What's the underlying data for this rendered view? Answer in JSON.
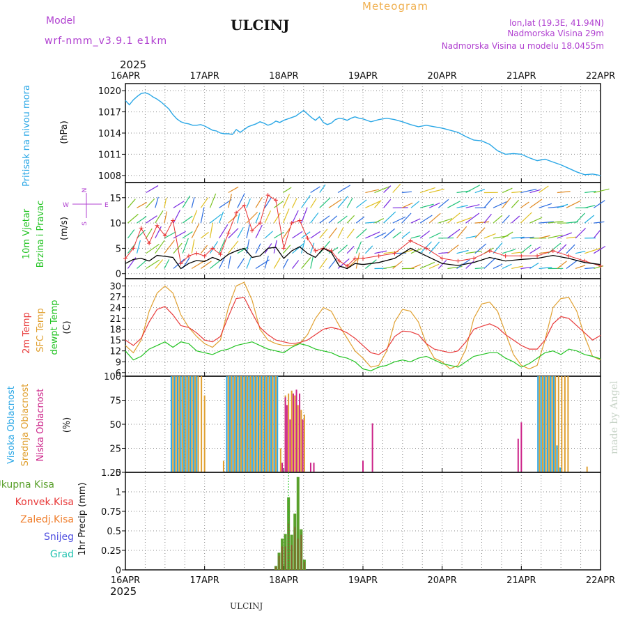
{
  "header": {
    "model_label": "Model",
    "model_name": "wrf-nmm_v3.9.1  e1km",
    "station": "ULCINJ",
    "meteogram": "Meteogram",
    "lonlat": "lon,lat (19.3E, 41.94N)",
    "elev": "Nadmorska Visina 29m",
    "elev_model": "Nadmorska Visina u modelu 18.0455m",
    "footer_station": "ULCINJ",
    "credit": "made by Angel"
  },
  "x_axis": {
    "year": "2025",
    "ticks": [
      "16APR",
      "17APR",
      "18APR",
      "19APR",
      "20APR",
      "21APR",
      "22APR"
    ]
  },
  "colors": {
    "pressure": "#2aa7e6",
    "wind_speed": "#000000",
    "gust": "#e83030",
    "temp2m": "#e83a3a",
    "sfc_temp": "#e0a030",
    "dewpt": "#22c322",
    "cloud_high": "#2aa7e6",
    "cloud_mid": "#e0a030",
    "cloud_low": "#cc2288",
    "precip_total": "#5aa02c",
    "precip_conv": "#b03030",
    "header_purple": "#b040d0",
    "header_orange": "#f0b050"
  },
  "chart_data": [
    {
      "type": "line",
      "name": "pressure",
      "ylabel_main": "Pritisak na nivou mora",
      "ylabel_unit": "(hPa)",
      "ylim": [
        1007,
        1021
      ],
      "yticks": [
        1008,
        1011,
        1014,
        1017,
        1020
      ],
      "x_days": [
        0,
        0.05,
        0.1,
        0.15,
        0.2,
        0.25,
        0.3,
        0.35,
        0.4,
        0.45,
        0.5,
        0.55,
        0.6,
        0.65,
        0.7,
        0.75,
        0.8,
        0.85,
        0.9,
        0.95,
        1.0,
        1.05,
        1.1,
        1.15,
        1.2,
        1.25,
        1.3,
        1.35,
        1.4,
        1.45,
        1.5,
        1.55,
        1.6,
        1.65,
        1.7,
        1.75,
        1.8,
        1.85,
        1.9,
        1.95,
        2.0,
        2.05,
        2.1,
        2.15,
        2.2,
        2.25,
        2.3,
        2.35,
        2.4,
        2.45,
        2.5,
        2.55,
        2.6,
        2.65,
        2.7,
        2.75,
        2.8,
        2.85,
        2.9,
        2.95,
        3.0,
        3.1,
        3.2,
        3.3,
        3.4,
        3.5,
        3.6,
        3.7,
        3.8,
        3.9,
        4.0,
        4.1,
        4.2,
        4.3,
        4.4,
        4.5,
        4.6,
        4.7,
        4.8,
        4.9,
        5.0,
        5.1,
        5.2,
        5.3,
        5.4,
        5.5,
        5.6,
        5.7,
        5.8,
        5.9,
        6.0
      ],
      "values": [
        1018.6,
        1018.0,
        1018.7,
        1019.2,
        1019.6,
        1019.7,
        1019.5,
        1019.1,
        1018.8,
        1018.4,
        1017.9,
        1017.4,
        1016.6,
        1016.0,
        1015.6,
        1015.4,
        1015.3,
        1015.1,
        1015.1,
        1015.2,
        1015.0,
        1014.7,
        1014.4,
        1014.3,
        1014.0,
        1013.9,
        1013.9,
        1013.8,
        1014.5,
        1014.1,
        1014.5,
        1014.9,
        1015.1,
        1015.3,
        1015.6,
        1015.4,
        1015.1,
        1015.3,
        1015.7,
        1015.5,
        1015.8,
        1016.0,
        1016.2,
        1016.4,
        1016.8,
        1017.2,
        1016.7,
        1016.2,
        1015.8,
        1016.3,
        1015.5,
        1015.2,
        1015.4,
        1015.9,
        1016.1,
        1016.0,
        1015.8,
        1016.1,
        1016.3,
        1016.1,
        1016.0,
        1015.6,
        1015.9,
        1016.1,
        1015.9,
        1015.6,
        1015.2,
        1014.9,
        1015.1,
        1014.9,
        1014.7,
        1014.4,
        1014.1,
        1013.5,
        1013.0,
        1012.9,
        1012.4,
        1011.5,
        1011.0,
        1011.1,
        1011.0,
        1010.5,
        1010.1,
        1010.3,
        1009.9,
        1009.5,
        1009.0,
        1008.5,
        1008.1,
        1008.2,
        1008.0
      ]
    },
    {
      "type": "line",
      "name": "wind",
      "ylabel_main": "10m Vjetar",
      "ylabel_sub": "Brzina i Pravac",
      "ylabel_unit": "(m/s)",
      "compass": [
        "N",
        "W",
        "E",
        "S"
      ],
      "ylim": [
        -1,
        18
      ],
      "yticks": [
        0,
        5,
        10,
        15
      ],
      "x_days": [
        0,
        0.1,
        0.2,
        0.3,
        0.4,
        0.5,
        0.6,
        0.7,
        0.8,
        0.9,
        1.0,
        1.1,
        1.2,
        1.3,
        1.4,
        1.5,
        1.6,
        1.7,
        1.8,
        1.9,
        2.0,
        2.1,
        2.2,
        2.3,
        2.4,
        2.5,
        2.6,
        2.7,
        2.8,
        2.9,
        3.0,
        3.2,
        3.4,
        3.6,
        3.8,
        4.0,
        4.2,
        4.4,
        4.6,
        4.8,
        5.0,
        5.2,
        5.4,
        5.6,
        5.8,
        6.0
      ],
      "speed": [
        2.0,
        2.8,
        3.0,
        2.5,
        3.6,
        3.4,
        3.2,
        1.0,
        2.0,
        2.6,
        2.4,
        3.2,
        2.6,
        3.8,
        4.5,
        5.0,
        3.2,
        3.5,
        5.0,
        5.2,
        3.0,
        4.5,
        5.3,
        4.0,
        3.2,
        5.0,
        4.2,
        1.5,
        1.0,
        2.0,
        1.8,
        2.2,
        3.0,
        5.0,
        3.5,
        2.0,
        1.6,
        2.2,
        3.2,
        2.5,
        2.8,
        3.0,
        3.6,
        3.0,
        2.2,
        1.8
      ],
      "gust": [
        3.0,
        5.0,
        9.0,
        6.0,
        9.5,
        7.5,
        10.5,
        2.0,
        3.5,
        4.0,
        3.5,
        5.0,
        3.8,
        8.0,
        12.0,
        13.5,
        8.5,
        10.0,
        15.5,
        14.5,
        5.0,
        10.0,
        10.5,
        7.0,
        4.5,
        5.0,
        4.5,
        2.5,
        1.5,
        3.0,
        3.0,
        3.5,
        4.0,
        6.5,
        5.0,
        3.0,
        2.5,
        3.0,
        4.5,
        3.5,
        3.5,
        3.5,
        4.5,
        3.5,
        2.5,
        1.5
      ]
    },
    {
      "type": "line",
      "name": "temperature",
      "series_labels": [
        "2m Temp",
        "SFC Temp",
        "dewpt Temp"
      ],
      "ylabel_unit": "(C)",
      "ylim": [
        5,
        32
      ],
      "yticks": [
        6,
        9,
        12,
        15,
        18,
        21,
        24,
        27,
        30
      ],
      "x_days": [
        0,
        0.1,
        0.2,
        0.3,
        0.4,
        0.5,
        0.6,
        0.7,
        0.8,
        0.9,
        1.0,
        1.1,
        1.2,
        1.3,
        1.4,
        1.5,
        1.6,
        1.7,
        1.8,
        1.9,
        2.0,
        2.1,
        2.2,
        2.3,
        2.4,
        2.5,
        2.6,
        2.7,
        2.8,
        2.9,
        3.0,
        3.1,
        3.2,
        3.3,
        3.4,
        3.5,
        3.6,
        3.7,
        3.8,
        3.9,
        4.0,
        4.1,
        4.2,
        4.3,
        4.4,
        4.5,
        4.6,
        4.7,
        4.8,
        4.9,
        5.0,
        5.1,
        5.2,
        5.3,
        5.4,
        5.5,
        5.6,
        5.7,
        5.8,
        5.9,
        6.0
      ],
      "temp2m": [
        15.0,
        13.5,
        15.5,
        20.0,
        23.5,
        24.3,
        22.0,
        19.0,
        18.5,
        17.0,
        15.0,
        14.5,
        16.0,
        21.5,
        26.5,
        26.8,
        22.5,
        18.5,
        16.5,
        15.0,
        14.5,
        14.0,
        14.3,
        15.0,
        16.5,
        18.0,
        18.5,
        18.0,
        17.0,
        15.5,
        13.5,
        11.5,
        11.0,
        12.5,
        16.0,
        17.5,
        17.3,
        16.5,
        14.0,
        12.5,
        12.0,
        11.5,
        12.0,
        14.5,
        18.0,
        18.8,
        19.5,
        18.5,
        16.5,
        15.0,
        13.5,
        12.5,
        12.5,
        15.0,
        19.5,
        21.5,
        21.0,
        19.0,
        17.0,
        15.0,
        16.3
      ],
      "sfc": [
        13.5,
        11.5,
        15.0,
        23.0,
        28.0,
        30.0,
        28.0,
        22.0,
        18.5,
        16.0,
        14.0,
        13.0,
        15.0,
        24.0,
        30.0,
        31.0,
        26.0,
        18.0,
        15.0,
        14.0,
        13.5,
        13.5,
        14.0,
        16.5,
        21.0,
        24.0,
        23.0,
        19.0,
        15.5,
        12.0,
        10.0,
        7.5,
        8.0,
        12.0,
        20.0,
        23.5,
        23.0,
        20.0,
        14.0,
        10.0,
        9.0,
        7.0,
        8.0,
        12.5,
        21.0,
        25.0,
        25.5,
        23.0,
        17.0,
        11.0,
        8.0,
        7.0,
        8.0,
        15.0,
        24.0,
        26.5,
        26.8,
        23.0,
        16.0,
        10.5,
        9.5
      ],
      "dewpt": [
        12.0,
        9.5,
        10.5,
        12.5,
        13.5,
        14.5,
        13.0,
        14.5,
        14.0,
        12.0,
        11.5,
        11.0,
        12.0,
        12.5,
        13.5,
        14.0,
        14.5,
        13.5,
        12.5,
        12.0,
        11.5,
        13.0,
        14.0,
        13.5,
        12.5,
        12.0,
        11.5,
        10.5,
        10.0,
        9.0,
        7.0,
        6.5,
        7.5,
        8.0,
        9.0,
        9.5,
        9.0,
        10.0,
        10.5,
        9.5,
        8.5,
        8.0,
        7.5,
        9.0,
        10.5,
        11.0,
        11.5,
        11.5,
        10.0,
        9.0,
        7.5,
        8.5,
        10.0,
        11.5,
        12.0,
        11.0,
        12.5,
        12.0,
        11.0,
        10.5,
        9.8
      ]
    },
    {
      "type": "bar",
      "name": "clouds",
      "series_labels": [
        "Visoka Oblacnost",
        "Srednja Oblacnost",
        "Niska Oblacnost"
      ],
      "ylabel_unit": "(%)",
      "ylim": [
        0,
        100
      ],
      "yticks": [
        0,
        25,
        50,
        75,
        100
      ],
      "high_x": [
        0.58,
        0.62,
        0.66,
        0.7,
        0.74,
        0.78,
        0.82,
        0.86,
        0.9,
        1.28,
        1.32,
        1.36,
        1.4,
        1.44,
        1.48,
        1.52,
        1.56,
        1.6,
        1.64,
        1.68,
        1.72,
        1.76,
        1.8,
        1.84,
        1.88,
        1.92,
        5.21,
        5.25,
        5.29,
        5.33,
        5.37,
        5.41,
        5.45,
        5.49
      ],
      "high_v": [
        100,
        100,
        100,
        100,
        100,
        100,
        100,
        100,
        100,
        100,
        100,
        100,
        100,
        100,
        100,
        100,
        100,
        100,
        100,
        100,
        100,
        100,
        100,
        100,
        100,
        100,
        100,
        100,
        100,
        100,
        100,
        100,
        28,
        5
      ],
      "mid_x": [
        0.6,
        0.64,
        0.68,
        0.72,
        0.76,
        0.8,
        0.84,
        0.88,
        0.92,
        0.96,
        1.0,
        1.24,
        1.3,
        1.34,
        1.38,
        1.42,
        1.46,
        1.5,
        1.54,
        1.58,
        1.62,
        1.66,
        1.7,
        1.74,
        1.78,
        1.82,
        1.86,
        1.9,
        1.96,
        2.02,
        2.06,
        2.1,
        2.14,
        2.18,
        2.22,
        2.26,
        5.23,
        5.27,
        5.31,
        5.35,
        5.39,
        5.43,
        5.47,
        5.51,
        5.55,
        5.59,
        5.83
      ],
      "mid_v": [
        100,
        100,
        100,
        100,
        100,
        100,
        100,
        100,
        100,
        100,
        80,
        12,
        100,
        100,
        100,
        100,
        100,
        100,
        100,
        100,
        100,
        100,
        100,
        100,
        100,
        100,
        100,
        100,
        25,
        80,
        82,
        85,
        80,
        70,
        65,
        60,
        100,
        100,
        100,
        100,
        100,
        100,
        100,
        100,
        100,
        100,
        6
      ],
      "low_x": [
        1.98,
        2.02,
        2.04,
        2.08,
        2.12,
        2.16,
        2.2,
        2.24,
        2.34,
        2.38,
        3.0,
        3.12,
        4.96,
        5.0
      ],
      "low_v": [
        10,
        78,
        70,
        55,
        82,
        86,
        82,
        55,
        10,
        10,
        12,
        51,
        35,
        52
      ]
    },
    {
      "type": "bar",
      "name": "precip",
      "series_labels": [
        "Ukupna Kisa",
        "Konvek.Kisa",
        "Zaledj.Kisa",
        "Snijeg",
        "Grad"
      ],
      "ylabel": "1hr Precip (mm)",
      "ylim": [
        0,
        1.25
      ],
      "yticks": [
        0,
        0.25,
        0.5,
        0.75,
        1,
        1.25
      ],
      "x": [
        1.9,
        1.94,
        1.98,
        2.02,
        2.06,
        2.1,
        2.14,
        2.18,
        2.22,
        2.26
      ],
      "total": [
        0.05,
        0.22,
        0.4,
        0.46,
        0.93,
        0.45,
        0.72,
        1.19,
        0.52,
        0.13
      ],
      "conv": [
        0.04,
        0.18,
        0.3,
        0.3,
        0.6,
        0.32,
        0.55,
        0.4,
        0.45,
        0.1
      ],
      "xticks_bottom": [
        "16APR",
        "17APR",
        "18APR",
        "19APR",
        "20APR",
        "21APR",
        "22APR"
      ],
      "year_bottom": "2025"
    }
  ]
}
